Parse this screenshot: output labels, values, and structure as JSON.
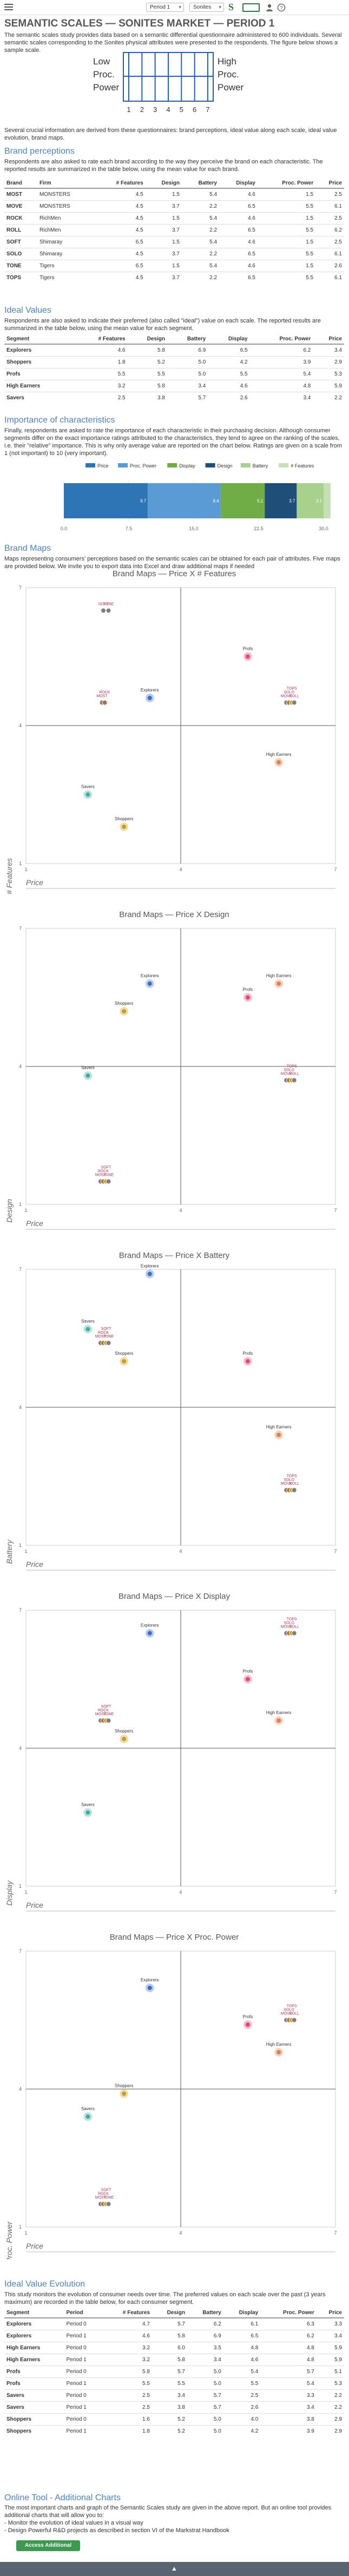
{
  "topbar": {
    "period_select": "Period 1",
    "market_select": "Sonites"
  },
  "page_title": "SEMANTIC SCALES — SONITES MARKET — PERIOD 1",
  "intro": "The semantic scales study provides data based on a semantic differential questionnaire administered to 600 individuals. Several semantic scales corresponding to the Sonites physical attributes were presented to the respondents. The figure below shows a sample scale.",
  "sample_scale": {
    "left_label_1": "Low",
    "left_label_2": "Proc.",
    "left_label_3": "Power",
    "right_label_1": "High",
    "right_label_2": "Proc.",
    "right_label_3": "Power",
    "ticks": [
      "1",
      "2",
      "3",
      "4",
      "5",
      "6",
      "7"
    ]
  },
  "intro2": "Several crucial information are derived from these questionnaires: brand perceptions, ideal value along each scale, ideal value evolution, brand maps.",
  "brand_perceptions": {
    "heading": "Brand perceptions",
    "text": "Respondents are also asked to rate each brand according to the way they perceive the brand on each characteristic. The reported results are summarized in the table below, using the mean value for each brand.",
    "columns": [
      "Brand",
      "Firm",
      "# Features",
      "Design",
      "Battery",
      "Display",
      "Proc. Power",
      "Price"
    ],
    "rows": [
      [
        "MOST",
        "MONSTERS",
        "4.5",
        "1.5",
        "5.4",
        "4.6",
        "1.5",
        "2.5"
      ],
      [
        "MOVE",
        "MONSTERS",
        "4.5",
        "3.7",
        "2.2",
        "6.5",
        "5.5",
        "6.1"
      ],
      [
        "ROCK",
        "RichMen",
        "4.5",
        "1.5",
        "5.4",
        "4.6",
        "1.5",
        "2.5"
      ],
      [
        "ROLL",
        "RichMen",
        "4.5",
        "3.7",
        "2.2",
        "6.5",
        "5.5",
        "6.2"
      ],
      [
        "SOFT",
        "Shimaray",
        "6.5",
        "1.5",
        "5.4",
        "4.6",
        "1.5",
        "2.5"
      ],
      [
        "SOLO",
        "Shimaray",
        "4.5",
        "3.7",
        "2.2",
        "6.5",
        "5.5",
        "6.1"
      ],
      [
        "TONE",
        "Tigers",
        "6.5",
        "1.5",
        "5.4",
        "4.6",
        "1.5",
        "2.6"
      ],
      [
        "TOPS",
        "Tigers",
        "4.5",
        "3.7",
        "2.2",
        "6.5",
        "5.5",
        "6.1"
      ]
    ]
  },
  "ideal_values": {
    "heading": "Ideal Values",
    "text": "Respondents are also asked to indicate their preferred (also called \"ideal\") value on each scale. The reported results are summarized in the table below, using the mean value for each segment.",
    "columns": [
      "Segment",
      "# Features",
      "Design",
      "Battery",
      "Display",
      "Proc. Power",
      "Price"
    ],
    "rows": [
      [
        "Explorers",
        "4.6",
        "5.8",
        "6.9",
        "6.5",
        "6.2",
        "3.4"
      ],
      [
        "Shoppers",
        "1.8",
        "5.2",
        "5.0",
        "4.2",
        "3.9",
        "2.9"
      ],
      [
        "Profs",
        "5.5",
        "5.5",
        "5.0",
        "5.5",
        "5.4",
        "5.3"
      ],
      [
        "High Earners",
        "3.2",
        "5.8",
        "3.4",
        "4.6",
        "4.8",
        "5.9"
      ],
      [
        "Savers",
        "2.5",
        "3.8",
        "5.7",
        "2.6",
        "3.4",
        "2.2"
      ]
    ]
  },
  "importance": {
    "heading": "Importance of characteristics",
    "text": "Finally, respondents are asked to rate the importance of each characteristic in their purchasing decision. Although consumer segments differ on the exact importance ratings attributed to the characteristics, they tend to agree on the ranking of the scales, i.e. their \"relative\" importance. This is why only average value are reported on the chart below. Ratings are given on a scale from 1 (not important) to 10 (very important).",
    "chart_data": {
      "type": "bar",
      "orientation": "horizontal-stacked",
      "series": [
        {
          "name": "Price",
          "values": [
            9.7
          ],
          "color": "#2e75b6"
        },
        {
          "name": "Proc. Power",
          "values": [
            8.4
          ],
          "color": "#5b9bd5"
        },
        {
          "name": "Display",
          "values": [
            5.1
          ],
          "color": "#70ad47"
        },
        {
          "name": "Design",
          "values": [
            3.7
          ],
          "color": "#1f4e79"
        },
        {
          "name": "Battery",
          "values": [
            3.1
          ],
          "color": "#a9d18e"
        },
        {
          "name": "# Features",
          "values": [
            0.8
          ],
          "color": "#c5e0b4"
        }
      ],
      "xlim": [
        0,
        30
      ],
      "ticks": [
        "0.0",
        "7.5",
        "15.0",
        "22.5",
        "30.0"
      ]
    }
  },
  "brand_maps": {
    "heading": "Brand Maps",
    "text": "Maps representing consumers' perceptions based on the semantic scales can be obtained for each pair of attributes. Five maps are provided below. We invite you to export data into Excel and draw additional maps if needed",
    "x_label": "Price",
    "maps": [
      {
        "title": "Brand Maps — Price X # Features",
        "y_label": "# Features",
        "chart_data": {
          "type": "scatter",
          "xlim": [
            1,
            7
          ],
          "ylim": [
            1,
            7
          ],
          "brands": [
            {
              "name": "SOFT",
              "x": 2.5,
              "y": 6.5
            },
            {
              "name": "TONE",
              "x": 2.6,
              "y": 6.5
            },
            {
              "name": "MOST",
              "x": 2.5,
              "y": 4.5
            },
            {
              "name": "ROCK",
              "x": 2.5,
              "y": 4.5
            },
            {
              "name": "MOVE",
              "x": 6.1,
              "y": 4.5
            },
            {
              "name": "ROLL",
              "x": 6.2,
              "y": 4.5
            },
            {
              "name": "SOLO",
              "x": 6.1,
              "y": 4.5
            },
            {
              "name": "TOPS",
              "x": 6.1,
              "y": 4.5
            }
          ],
          "segments": [
            {
              "name": "Explorers",
              "x": 3.4,
              "y": 4.6
            },
            {
              "name": "Shoppers",
              "x": 2.9,
              "y": 1.8
            },
            {
              "name": "Profs",
              "x": 5.3,
              "y": 5.5
            },
            {
              "name": "High Earners",
              "x": 5.9,
              "y": 3.2
            },
            {
              "name": "Savers",
              "x": 2.2,
              "y": 2.5
            }
          ]
        }
      },
      {
        "title": "Brand Maps — Price X Design",
        "y_label": "Design",
        "chart_data": {
          "type": "scatter",
          "xlim": [
            1,
            7
          ],
          "ylim": [
            1,
            7
          ],
          "brands": [
            {
              "name": "MOST",
              "x": 2.5,
              "y": 1.5
            },
            {
              "name": "ROCK",
              "x": 2.5,
              "y": 1.5
            },
            {
              "name": "SOFT",
              "x": 2.5,
              "y": 1.5
            },
            {
              "name": "TONE",
              "x": 2.6,
              "y": 1.5
            },
            {
              "name": "MOVE",
              "x": 6.1,
              "y": 3.7
            },
            {
              "name": "ROLL",
              "x": 6.2,
              "y": 3.7
            },
            {
              "name": "SOLO",
              "x": 6.1,
              "y": 3.7
            },
            {
              "name": "TOPS",
              "x": 6.1,
              "y": 3.7
            }
          ],
          "segments": [
            {
              "name": "Explorers",
              "x": 3.4,
              "y": 5.8
            },
            {
              "name": "Shoppers",
              "x": 2.9,
              "y": 5.2
            },
            {
              "name": "Profs",
              "x": 5.3,
              "y": 5.5
            },
            {
              "name": "High Earners",
              "x": 5.9,
              "y": 5.8
            },
            {
              "name": "Savers",
              "x": 2.2,
              "y": 3.8
            }
          ]
        }
      },
      {
        "title": "Brand Maps — Price X Battery",
        "y_label": "Battery",
        "chart_data": {
          "type": "scatter",
          "xlim": [
            1,
            7
          ],
          "ylim": [
            1,
            7
          ],
          "brands": [
            {
              "name": "MOST",
              "x": 2.5,
              "y": 5.4
            },
            {
              "name": "ROCK",
              "x": 2.5,
              "y": 5.4
            },
            {
              "name": "SOFT",
              "x": 2.5,
              "y": 5.4
            },
            {
              "name": "TONE",
              "x": 2.6,
              "y": 5.4
            },
            {
              "name": "MOVE",
              "x": 6.1,
              "y": 2.2
            },
            {
              "name": "ROLL",
              "x": 6.2,
              "y": 2.2
            },
            {
              "name": "SOLO",
              "x": 6.1,
              "y": 2.2
            },
            {
              "name": "TOPS",
              "x": 6.1,
              "y": 2.2
            }
          ],
          "segments": [
            {
              "name": "Explorers",
              "x": 3.4,
              "y": 6.9
            },
            {
              "name": "Shoppers",
              "x": 2.9,
              "y": 5.0
            },
            {
              "name": "Profs",
              "x": 5.3,
              "y": 5.0
            },
            {
              "name": "High Earners",
              "x": 5.9,
              "y": 3.4
            },
            {
              "name": "Savers",
              "x": 2.2,
              "y": 5.7
            }
          ]
        }
      },
      {
        "title": "Brand Maps — Price X Display",
        "y_label": "Display",
        "chart_data": {
          "type": "scatter",
          "xlim": [
            1,
            7
          ],
          "ylim": [
            1,
            7
          ],
          "brands": [
            {
              "name": "MOST",
              "x": 2.5,
              "y": 4.6
            },
            {
              "name": "ROCK",
              "x": 2.5,
              "y": 4.6
            },
            {
              "name": "SOFT",
              "x": 2.5,
              "y": 4.6
            },
            {
              "name": "TONE",
              "x": 2.6,
              "y": 4.6
            },
            {
              "name": "MOVE",
              "x": 6.1,
              "y": 6.5
            },
            {
              "name": "ROLL",
              "x": 6.2,
              "y": 6.5
            },
            {
              "name": "SOLO",
              "x": 6.1,
              "y": 6.5
            },
            {
              "name": "TOPS",
              "x": 6.1,
              "y": 6.5
            }
          ],
          "segments": [
            {
              "name": "Explorers",
              "x": 3.4,
              "y": 6.5
            },
            {
              "name": "Shoppers",
              "x": 2.9,
              "y": 4.2
            },
            {
              "name": "Profs",
              "x": 5.3,
              "y": 5.5
            },
            {
              "name": "High Earners",
              "x": 5.9,
              "y": 4.6
            },
            {
              "name": "Savers",
              "x": 2.2,
              "y": 2.6
            }
          ]
        }
      },
      {
        "title": "Brand Maps — Price X Proc. Power",
        "y_label": "Proc. Power",
        "chart_data": {
          "type": "scatter",
          "xlim": [
            1,
            7
          ],
          "ylim": [
            1,
            7
          ],
          "brands": [
            {
              "name": "MOST",
              "x": 2.5,
              "y": 1.5
            },
            {
              "name": "ROCK",
              "x": 2.5,
              "y": 1.5
            },
            {
              "name": "SOFT",
              "x": 2.5,
              "y": 1.5
            },
            {
              "name": "TONE",
              "x": 2.6,
              "y": 1.5
            },
            {
              "name": "MOVE",
              "x": 6.1,
              "y": 5.5
            },
            {
              "name": "ROLL",
              "x": 6.2,
              "y": 5.5
            },
            {
              "name": "SOLO",
              "x": 6.1,
              "y": 5.5
            },
            {
              "name": "TOPS",
              "x": 6.1,
              "y": 5.5
            }
          ],
          "segments": [
            {
              "name": "Explorers",
              "x": 3.4,
              "y": 6.2
            },
            {
              "name": "Shoppers",
              "x": 2.9,
              "y": 3.9
            },
            {
              "name": "Profs",
              "x": 5.3,
              "y": 5.4
            },
            {
              "name": "High Earners",
              "x": 5.9,
              "y": 4.8
            },
            {
              "name": "Savers",
              "x": 2.2,
              "y": 3.4
            }
          ]
        }
      }
    ]
  },
  "ideal_evolution": {
    "heading": "Ideal Value Evolution",
    "text": "This study monitors the evolution of consumer needs over time. The preferred values on each scale over the past (3 years maximum) are recorded in the table below, for each consumer segment.",
    "columns": [
      "Segment",
      "Period",
      "# Features",
      "Design",
      "Battery",
      "Display",
      "Proc. Power",
      "Price"
    ],
    "rows": [
      [
        "Explorers",
        "Period 0",
        "4.7",
        "5.7",
        "6.2",
        "6.1",
        "6.3",
        "3.3"
      ],
      [
        "Explorers",
        "Period 1",
        "4.6",
        "5.8",
        "6.9",
        "6.5",
        "6.2",
        "3.4"
      ],
      [
        "High Earners",
        "Period 0",
        "3.2",
        "6.0",
        "3.5",
        "4.8",
        "4.8",
        "5.9"
      ],
      [
        "High Earners",
        "Period 1",
        "3.2",
        "5.8",
        "3.4",
        "4.6",
        "4.8",
        "5.9"
      ],
      [
        "Profs",
        "Period 0",
        "5.8",
        "5.7",
        "5.0",
        "5.4",
        "5.7",
        "5.1"
      ],
      [
        "Profs",
        "Period 1",
        "5.5",
        "5.5",
        "5.0",
        "5.5",
        "5.4",
        "5.3"
      ],
      [
        "Savers",
        "Period 0",
        "2.5",
        "3.4",
        "5.7",
        "2.5",
        "3.3",
        "2.2"
      ],
      [
        "Savers",
        "Period 1",
        "2.5",
        "3.8",
        "5.7",
        "2.6",
        "3.4",
        "2.2"
      ],
      [
        "Shoppers",
        "Period 0",
        "1.6",
        "5.2",
        "5.0",
        "4.0",
        "3.8",
        "2.9"
      ],
      [
        "Shoppers",
        "Period 1",
        "1.8",
        "5.2",
        "5.0",
        "4.2",
        "3.9",
        "2.9"
      ]
    ]
  },
  "online_tool": {
    "heading": "Online Tool - Additional Charts",
    "text": "The most important charts and graph of the Semantic Scales study are given in the above report. But an online tool provides additional charts that will allow you to:",
    "bullet_1": "- Monitor the evolution of ideal values in a visual way",
    "bullet_2": "- Design Powerful R&D projects as described in section VI of the Markstrat Handbook",
    "button_label": "Access Additional Charts"
  },
  "colors": {
    "heading": "#4d82b8",
    "brand_point": "#7f7f7f",
    "segment_point": "#e06080",
    "button": "#3a9a4e",
    "footer": "#5a6370"
  }
}
